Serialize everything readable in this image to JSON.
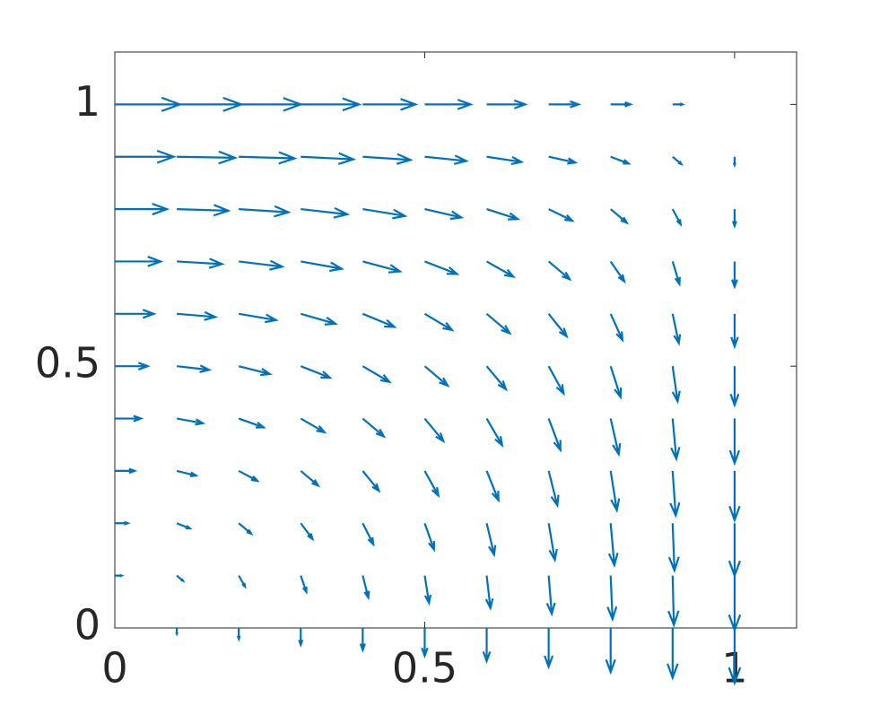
{
  "chart_data": {
    "type": "quiver",
    "color": "#0072bd",
    "x": [
      0,
      0.1,
      0.2,
      0.3,
      0.4,
      0.5,
      0.6,
      0.7,
      0.8,
      0.9,
      1
    ],
    "y": [
      0,
      0.1,
      0.2,
      0.3,
      0.4,
      0.5,
      0.6,
      0.7,
      0.8,
      0.9,
      1
    ],
    "u": [
      [
        0,
        0,
        0,
        0,
        0,
        0,
        0,
        0,
        0,
        0,
        0
      ],
      [
        0.011,
        0.01,
        0.01,
        0.009,
        0.009,
        0.007,
        0.006,
        0.005,
        0.003,
        0.002,
        0
      ],
      [
        0.021,
        0.021,
        0.02,
        0.019,
        0.017,
        0.015,
        0.012,
        0.01,
        0.006,
        0.003,
        0
      ],
      [
        0.032,
        0.031,
        0.03,
        0.028,
        0.026,
        0.022,
        0.019,
        0.014,
        0.01,
        0.005,
        0
      ],
      [
        0.042,
        0.042,
        0.04,
        0.038,
        0.034,
        0.03,
        0.025,
        0.019,
        0.013,
        0.006,
        0
      ],
      [
        0.053,
        0.052,
        0.05,
        0.047,
        0.043,
        0.037,
        0.031,
        0.024,
        0.016,
        0.008,
        0
      ],
      [
        0.063,
        0.062,
        0.06,
        0.056,
        0.051,
        0.044,
        0.037,
        0.029,
        0.019,
        0.01,
        0
      ],
      [
        0.074,
        0.073,
        0.07,
        0.066,
        0.06,
        0.052,
        0.043,
        0.034,
        0.022,
        0.011,
        0
      ],
      [
        0.084,
        0.083,
        0.08,
        0.075,
        0.068,
        0.059,
        0.05,
        0.038,
        0.026,
        0.013,
        0
      ],
      [
        0.095,
        0.094,
        0.09,
        0.085,
        0.077,
        0.067,
        0.056,
        0.043,
        0.029,
        0.014,
        0
      ],
      [
        0.105,
        0.104,
        0.1,
        0.094,
        0.085,
        0.074,
        0.062,
        0.048,
        0.032,
        0.016,
        0
      ]
    ],
    "v": [
      [
        0,
        -0.011,
        -0.021,
        -0.032,
        -0.042,
        -0.053,
        -0.063,
        -0.074,
        -0.084,
        -0.095,
        -0.105
      ],
      [
        0,
        -0.01,
        -0.021,
        -0.031,
        -0.042,
        -0.052,
        -0.062,
        -0.073,
        -0.083,
        -0.094,
        -0.104
      ],
      [
        0,
        -0.01,
        -0.02,
        -0.03,
        -0.04,
        -0.05,
        -0.06,
        -0.07,
        -0.08,
        -0.09,
        -0.1
      ],
      [
        0,
        -0.009,
        -0.019,
        -0.028,
        -0.038,
        -0.047,
        -0.056,
        -0.066,
        -0.075,
        -0.085,
        -0.094
      ],
      [
        0,
        -0.009,
        -0.017,
        -0.026,
        -0.034,
        -0.043,
        -0.051,
        -0.06,
        -0.068,
        -0.077,
        -0.085
      ],
      [
        0,
        -0.007,
        -0.015,
        -0.022,
        -0.03,
        -0.037,
        -0.044,
        -0.052,
        -0.059,
        -0.067,
        -0.074
      ],
      [
        0,
        -0.006,
        -0.012,
        -0.019,
        -0.025,
        -0.031,
        -0.037,
        -0.043,
        -0.05,
        -0.056,
        -0.062
      ],
      [
        0,
        -0.005,
        -0.01,
        -0.014,
        -0.019,
        -0.024,
        -0.029,
        -0.034,
        -0.038,
        -0.043,
        -0.048
      ],
      [
        0,
        -0.003,
        -0.006,
        -0.01,
        -0.013,
        -0.016,
        -0.019,
        -0.022,
        -0.026,
        -0.029,
        -0.032
      ],
      [
        0,
        -0.002,
        -0.003,
        -0.005,
        -0.006,
        -0.008,
        -0.01,
        -0.011,
        -0.013,
        -0.014,
        -0.016
      ],
      [
        0,
        0,
        0,
        0,
        0,
        0,
        0,
        0,
        0,
        0,
        0
      ]
    ],
    "xlim": [
      0,
      1.1
    ],
    "ylim": [
      0,
      1.1
    ],
    "xticks": [
      0,
      0.5,
      1
    ],
    "yticks": [
      0,
      0.5,
      1
    ]
  }
}
